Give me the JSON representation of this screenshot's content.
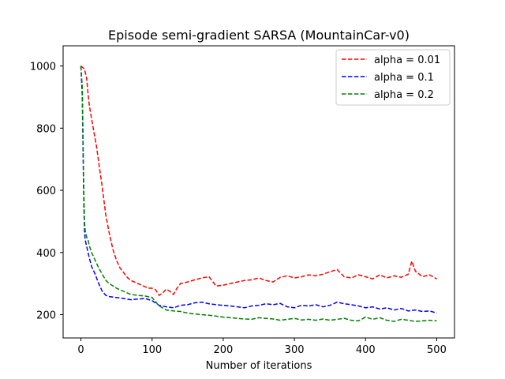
{
  "chart_data": {
    "type": "line",
    "title": "Episode semi-gradient SARSA (MountainCar-v0)",
    "xlabel": "Number of iterations",
    "ylabel": "",
    "xlim": [
      -25,
      525
    ],
    "ylim": [
      125,
      1065
    ],
    "xticks": [
      0,
      100,
      200,
      300,
      400,
      500
    ],
    "yticks": [
      200,
      400,
      600,
      800,
      1000
    ],
    "grid": false,
    "legend_position": "top-right",
    "series": [
      {
        "name": "alpha = 0.01",
        "color": "#ff0000",
        "dash": "dashed",
        "x": [
          0,
          5,
          8,
          10,
          12,
          15,
          18,
          22,
          25,
          30,
          35,
          40,
          45,
          50,
          55,
          60,
          65,
          70,
          75,
          80,
          85,
          90,
          95,
          100,
          105,
          110,
          115,
          120,
          125,
          130,
          135,
          140,
          150,
          160,
          170,
          180,
          190,
          200,
          210,
          220,
          230,
          240,
          250,
          260,
          270,
          280,
          290,
          300,
          310,
          320,
          330,
          340,
          350,
          360,
          370,
          380,
          390,
          400,
          410,
          420,
          430,
          440,
          450,
          460,
          465,
          470,
          480,
          490,
          500
        ],
        "y": [
          1000,
          990,
          960,
          910,
          870,
          830,
          790,
          740,
          690,
          610,
          520,
          460,
          410,
          375,
          350,
          335,
          320,
          310,
          305,
          300,
          295,
          290,
          285,
          285,
          280,
          262,
          270,
          282,
          275,
          265,
          285,
          300,
          305,
          312,
          318,
          322,
          292,
          295,
          300,
          305,
          310,
          312,
          318,
          310,
          305,
          320,
          325,
          318,
          322,
          328,
          325,
          330,
          338,
          345,
          322,
          318,
          328,
          322,
          315,
          328,
          318,
          325,
          320,
          330,
          372,
          340,
          322,
          328,
          315
        ]
      },
      {
        "name": "alpha = 0.1",
        "color": "#0000ff",
        "dash": "dashed",
        "x": [
          0,
          2,
          3,
          4,
          5,
          6,
          8,
          10,
          12,
          15,
          20,
          25,
          30,
          35,
          40,
          50,
          60,
          70,
          80,
          90,
          100,
          110,
          120,
          130,
          140,
          150,
          160,
          170,
          180,
          190,
          200,
          210,
          220,
          230,
          240,
          250,
          260,
          270,
          280,
          290,
          300,
          310,
          320,
          330,
          340,
          350,
          360,
          370,
          380,
          390,
          400,
          410,
          420,
          430,
          440,
          450,
          460,
          470,
          480,
          490,
          500
        ],
        "y": [
          1000,
          900,
          720,
          560,
          470,
          440,
          420,
          400,
          380,
          355,
          330,
          300,
          275,
          262,
          258,
          255,
          252,
          248,
          250,
          252,
          245,
          230,
          225,
          222,
          230,
          232,
          238,
          240,
          235,
          232,
          230,
          228,
          225,
          222,
          228,
          230,
          235,
          232,
          236,
          225,
          222,
          230,
          228,
          232,
          225,
          230,
          240,
          235,
          232,
          228,
          222,
          225,
          218,
          222,
          215,
          220,
          212,
          215,
          210,
          212,
          205
        ]
      },
      {
        "name": "alpha = 0.2",
        "color": "#008000",
        "dash": "dashed",
        "x": [
          0,
          2,
          3,
          4,
          5,
          6,
          8,
          10,
          12,
          15,
          20,
          25,
          30,
          35,
          40,
          50,
          60,
          70,
          80,
          90,
          100,
          110,
          120,
          130,
          140,
          150,
          160,
          170,
          180,
          190,
          200,
          210,
          220,
          230,
          240,
          250,
          260,
          270,
          280,
          290,
          300,
          310,
          320,
          330,
          340,
          350,
          360,
          370,
          380,
          390,
          400,
          410,
          420,
          430,
          440,
          450,
          460,
          470,
          480,
          490,
          500
        ],
        "y": [
          1000,
          930,
          760,
          600,
          500,
          470,
          450,
          440,
          420,
          400,
          375,
          350,
          330,
          310,
          300,
          285,
          275,
          265,
          262,
          260,
          255,
          228,
          215,
          212,
          210,
          205,
          202,
          200,
          198,
          195,
          192,
          190,
          188,
          186,
          185,
          190,
          188,
          186,
          182,
          185,
          188,
          183,
          185,
          182,
          186,
          182,
          185,
          188,
          182,
          180,
          192,
          185,
          190,
          182,
          178,
          185,
          182,
          178,
          180,
          182,
          180
        ]
      }
    ]
  }
}
